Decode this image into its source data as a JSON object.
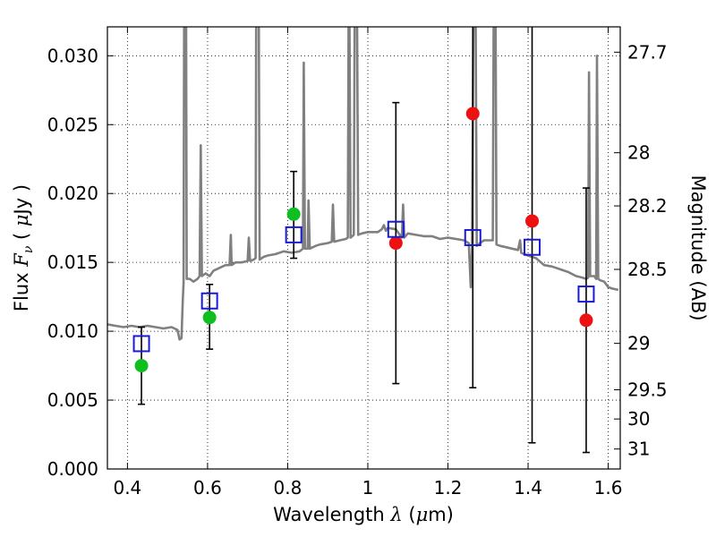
{
  "chart_data": {
    "type": "scatter",
    "xlabel": "Wavelength  λ (μm)",
    "ylabel": "Flux  F_ν  ( μJy )",
    "y2label": "Magnitude (AB)",
    "xlim": [
      0.35,
      1.63
    ],
    "ylim": [
      0.0,
      0.0321
    ],
    "grid": true,
    "x_ticks": [
      0.4,
      0.6,
      0.8,
      1.0,
      1.2,
      1.4,
      1.6
    ],
    "x_tick_labels": [
      "0.4",
      "0.6",
      "0.8",
      "1",
      "1.2",
      "1.4",
      "1.6"
    ],
    "y_ticks": [
      0.0,
      0.005,
      0.01,
      0.015,
      0.02,
      0.025,
      0.03
    ],
    "y_tick_labels": [
      "0.000",
      "0.005",
      "0.010",
      "0.015",
      "0.020",
      "0.025",
      "0.030"
    ],
    "y2_ticks": [
      {
        "label": "27.7",
        "flux": 0.03026
      },
      {
        "label": "28",
        "flux": 0.02296
      },
      {
        "label": "28.2",
        "flux": 0.0191
      },
      {
        "label": "28.5",
        "flux": 0.01449
      },
      {
        "label": "29",
        "flux": 0.00912
      },
      {
        "label": "29.5",
        "flux": 0.00575
      },
      {
        "label": "30",
        "flux": 0.00363
      },
      {
        "label": "31",
        "flux": 0.00145
      }
    ],
    "model_spectrum": {
      "color": "#808080",
      "points": [
        [
          0.35,
          0.0105
        ],
        [
          0.37,
          0.0104
        ],
        [
          0.39,
          0.0103
        ],
        [
          0.41,
          0.0104
        ],
        [
          0.43,
          0.0103
        ],
        [
          0.45,
          0.0104
        ],
        [
          0.47,
          0.0103
        ],
        [
          0.49,
          0.0102
        ],
        [
          0.51,
          0.0103
        ],
        [
          0.525,
          0.0101
        ],
        [
          0.53,
          0.0094
        ],
        [
          0.535,
          0.0095
        ],
        [
          0.538,
          0.0122
        ],
        [
          0.54,
          0.0135
        ],
        [
          0.542,
          0.04
        ],
        [
          0.546,
          0.04
        ],
        [
          0.548,
          0.0138
        ],
        [
          0.555,
          0.0138
        ],
        [
          0.565,
          0.0136
        ],
        [
          0.575,
          0.0138
        ],
        [
          0.58,
          0.014
        ],
        [
          0.583,
          0.0235
        ],
        [
          0.586,
          0.014
        ],
        [
          0.595,
          0.0142
        ],
        [
          0.605,
          0.014
        ],
        [
          0.615,
          0.0144
        ],
        [
          0.63,
          0.0146
        ],
        [
          0.645,
          0.0148
        ],
        [
          0.655,
          0.0148
        ],
        [
          0.658,
          0.017
        ],
        [
          0.66,
          0.0148
        ],
        [
          0.67,
          0.015
        ],
        [
          0.685,
          0.015
        ],
        [
          0.7,
          0.0151
        ],
        [
          0.703,
          0.0168
        ],
        [
          0.706,
          0.0151
        ],
        [
          0.715,
          0.0152
        ],
        [
          0.72,
          0.0153
        ],
        [
          0.722,
          0.04
        ],
        [
          0.727,
          0.04
        ],
        [
          0.73,
          0.0152
        ],
        [
          0.74,
          0.0154
        ],
        [
          0.75,
          0.0155
        ],
        [
          0.77,
          0.0156
        ],
        [
          0.79,
          0.0158
        ],
        [
          0.81,
          0.0157
        ],
        [
          0.83,
          0.0158
        ],
        [
          0.838,
          0.016
        ],
        [
          0.84,
          0.0295
        ],
        [
          0.843,
          0.016
        ],
        [
          0.85,
          0.016
        ],
        [
          0.852,
          0.0195
        ],
        [
          0.855,
          0.016
        ],
        [
          0.87,
          0.0162
        ],
        [
          0.88,
          0.0163
        ],
        [
          0.9,
          0.0164
        ],
        [
          0.91,
          0.0165
        ],
        [
          0.913,
          0.0192
        ],
        [
          0.916,
          0.0165
        ],
        [
          0.93,
          0.0166
        ],
        [
          0.945,
          0.0167
        ],
        [
          0.95,
          0.0168
        ],
        [
          0.953,
          0.04
        ],
        [
          0.957,
          0.0168
        ],
        [
          0.965,
          0.017
        ],
        [
          0.968,
          0.04
        ],
        [
          0.972,
          0.04
        ],
        [
          0.976,
          0.017
        ],
        [
          0.985,
          0.0171
        ],
        [
          1.0,
          0.0172
        ],
        [
          1.01,
          0.0172
        ],
        [
          1.025,
          0.0172
        ],
        [
          1.035,
          0.0174
        ],
        [
          1.04,
          0.0177
        ],
        [
          1.045,
          0.0173
        ],
        [
          1.05,
          0.0175
        ],
        [
          1.07,
          0.0174
        ],
        [
          1.085,
          0.0168
        ],
        [
          1.088,
          0.0192
        ],
        [
          1.091,
          0.0168
        ],
        [
          1.1,
          0.0171
        ],
        [
          1.12,
          0.017
        ],
        [
          1.14,
          0.0169
        ],
        [
          1.16,
          0.0169
        ],
        [
          1.18,
          0.0167
        ],
        [
          1.2,
          0.0168
        ],
        [
          1.22,
          0.0167
        ],
        [
          1.24,
          0.0166
        ],
        [
          1.252,
          0.0164
        ],
        [
          1.255,
          0.0145
        ],
        [
          1.257,
          0.0132
        ],
        [
          1.26,
          0.016
        ],
        [
          1.265,
          0.04
        ],
        [
          1.268,
          0.04
        ],
        [
          1.272,
          0.0162
        ],
        [
          1.28,
          0.0164
        ],
        [
          1.29,
          0.0166
        ],
        [
          1.3,
          0.0166
        ],
        [
          1.312,
          0.0166
        ],
        [
          1.315,
          0.04
        ],
        [
          1.318,
          0.04
        ],
        [
          1.321,
          0.0163
        ],
        [
          1.33,
          0.0162
        ],
        [
          1.345,
          0.0161
        ],
        [
          1.36,
          0.016
        ],
        [
          1.375,
          0.0159
        ],
        [
          1.38,
          0.0166
        ],
        [
          1.383,
          0.0157
        ],
        [
          1.39,
          0.0156
        ],
        [
          1.4,
          0.0155
        ],
        [
          1.41,
          0.0154
        ],
        [
          1.42,
          0.0153
        ],
        [
          1.44,
          0.0148
        ],
        [
          1.46,
          0.0147
        ],
        [
          1.48,
          0.0145
        ],
        [
          1.5,
          0.0143
        ],
        [
          1.52,
          0.014
        ],
        [
          1.535,
          0.0139
        ],
        [
          1.545,
          0.0138
        ],
        [
          1.55,
          0.0139
        ],
        [
          1.552,
          0.0288
        ],
        [
          1.555,
          0.014
        ],
        [
          1.565,
          0.014
        ],
        [
          1.57,
          0.0138
        ],
        [
          1.572,
          0.03
        ],
        [
          1.575,
          0.0138
        ],
        [
          1.58,
          0.0137
        ],
        [
          1.59,
          0.0136
        ],
        [
          1.6,
          0.0132
        ],
        [
          1.61,
          0.0131
        ],
        [
          1.625,
          0.013
        ]
      ]
    },
    "observed_green": {
      "color": "#0fbf1f",
      "points": [
        [
          0.435,
          0.0075
        ],
        [
          0.605,
          0.011
        ],
        [
          0.815,
          0.0185
        ]
      ]
    },
    "observed_red": {
      "color": "#ee1111",
      "points": [
        [
          1.07,
          0.0164
        ],
        [
          1.262,
          0.0258
        ],
        [
          1.41,
          0.018
        ],
        [
          1.545,
          0.0108
        ]
      ]
    },
    "model_photometry": {
      "color": "#1a1ad6",
      "points": [
        [
          0.435,
          0.0091
        ],
        [
          0.605,
          0.0122
        ],
        [
          0.815,
          0.017
        ],
        [
          1.07,
          0.0174
        ],
        [
          1.262,
          0.0168
        ],
        [
          1.41,
          0.0161
        ],
        [
          1.545,
          0.0127
        ]
      ]
    },
    "error_bars": [
      {
        "x": 0.435,
        "low": 0.0047,
        "high": 0.0103
      },
      {
        "x": 0.605,
        "low": 0.0087,
        "high": 0.0134
      },
      {
        "x": 0.815,
        "low": 0.0153,
        "high": 0.0216
      },
      {
        "x": 1.07,
        "low": 0.0062,
        "high": 0.0266
      },
      {
        "x": 1.262,
        "low": 0.0059,
        "high": 0.04
      },
      {
        "x": 1.41,
        "low": 0.0019,
        "high": 0.04
      },
      {
        "x": 1.545,
        "low": 0.0012,
        "high": 0.0204
      }
    ]
  }
}
